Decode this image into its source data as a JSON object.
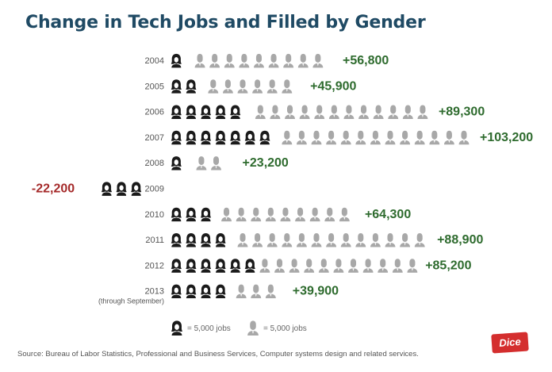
{
  "title": "Change in Tech Jobs and Filled by Gender",
  "source": "Source: Bureau of Labor Statistics, Professional and Business Services, Computer systems design and related services.",
  "logo_text": "Dice",
  "colors": {
    "female": "#1a1a1a",
    "male": "#a8a8a8",
    "positive": "#2e6b2e",
    "negative": "#a52a2a"
  },
  "chart_data": {
    "type": "bar",
    "unit": "jobs",
    "icon_value": 5000,
    "legend": [
      {
        "icon": "female-person-icon",
        "text": "= 5,000 jobs"
      },
      {
        "icon": "male-person-icon",
        "text": "= 5,000 jobs"
      }
    ],
    "rows": [
      {
        "year": "2004",
        "sub": "",
        "total": 56800,
        "label": "+56,800",
        "women": 1.6,
        "men": 9.8
      },
      {
        "year": "2005",
        "sub": "",
        "total": 45900,
        "label": "+45,900",
        "women": 2.5,
        "men": 6.7
      },
      {
        "year": "2006",
        "sub": "",
        "total": 89300,
        "label": "+89,300",
        "women": 5.7,
        "men": 12.2
      },
      {
        "year": "2007",
        "sub": "",
        "total": 103200,
        "label": "+103,200",
        "women": 7.5,
        "men": 13.2
      },
      {
        "year": "2008",
        "sub": "",
        "total": 23200,
        "label": "+23,200",
        "women": 1.7,
        "men": 2.9
      },
      {
        "year": "2009",
        "sub": "",
        "total": -22200,
        "label": "-22,200",
        "women": 3.9,
        "men": 0.5
      },
      {
        "year": "2010",
        "sub": "",
        "total": 64300,
        "label": "+64,300",
        "women": 3.4,
        "men": 9.5
      },
      {
        "year": "2011",
        "sub": "",
        "total": 88900,
        "label": "+88,900",
        "women": 4.5,
        "men": 13.3
      },
      {
        "year": "2012",
        "sub": "",
        "total": 85200,
        "label": "+85,200",
        "women": 6.0,
        "men": 11.0
      },
      {
        "year": "2013",
        "sub": "(through September)",
        "total": 39900,
        "label": "+39,900",
        "women": 4.4,
        "men": 3.6
      }
    ]
  }
}
